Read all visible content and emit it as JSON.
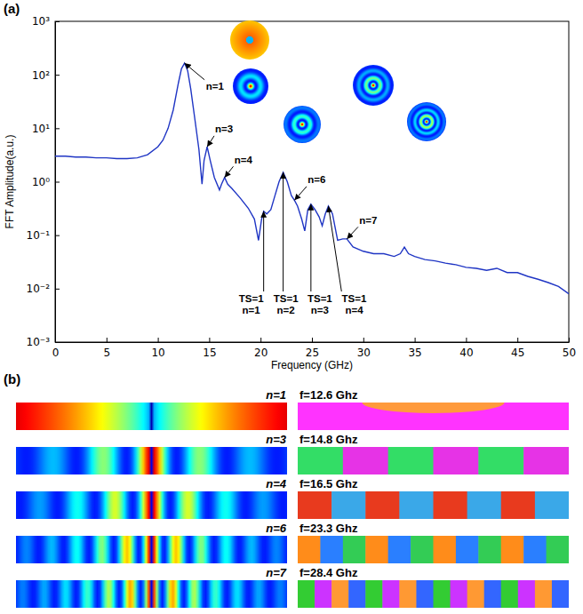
{
  "chart_data": {
    "type": "line",
    "panel_label": "(a)",
    "xlabel": "Frequency (GHz)",
    "ylabel": "FFT Amplitude(a.u.)",
    "x": [
      0,
      1,
      2,
      3,
      4,
      5,
      6,
      7,
      8,
      9,
      10,
      10.5,
      11,
      11.5,
      12,
      12.3,
      12.6,
      12.9,
      13.2,
      13.6,
      14,
      14.3,
      14.5,
      14.8,
      15.1,
      15.5,
      16,
      16.2,
      16.5,
      16.8,
      17.2,
      18,
      18.8,
      19.4,
      19.8,
      20.1,
      20.3,
      20.6,
      21,
      21.4,
      21.8,
      22.2,
      22.6,
      23,
      23.3,
      23.6,
      24,
      24.3,
      24.6,
      24.9,
      25.3,
      25.7,
      26,
      26.3,
      26.6,
      27,
      27.5,
      28,
      28.4,
      29,
      30,
      31,
      32,
      33,
      33.6,
      34,
      34.4,
      35,
      36,
      37,
      38,
      39,
      40,
      41,
      42,
      43,
      44,
      45,
      46,
      47,
      48,
      49,
      50
    ],
    "values": [
      3.0,
      3.0,
      2.9,
      2.9,
      2.8,
      2.8,
      2.7,
      2.7,
      2.8,
      3.2,
      4.5,
      6,
      10,
      22,
      70,
      130,
      165,
      120,
      55,
      15,
      4,
      0.9,
      2.5,
      4.5,
      2.5,
      1.2,
      0.7,
      0.9,
      1.2,
      0.9,
      0.75,
      0.5,
      0.32,
      0.2,
      0.08,
      0.2,
      0.28,
      0.25,
      0.3,
      0.55,
      1.0,
      1.5,
      1.0,
      0.55,
      0.45,
      0.35,
      0.2,
      0.12,
      0.3,
      0.38,
      0.3,
      0.22,
      0.15,
      0.25,
      0.35,
      0.25,
      0.08,
      0.085,
      0.085,
      0.06,
      0.05,
      0.045,
      0.045,
      0.04,
      0.045,
      0.06,
      0.045,
      0.04,
      0.035,
      0.033,
      0.03,
      0.028,
      0.025,
      0.024,
      0.022,
      0.024,
      0.02,
      0.02,
      0.017,
      0.015,
      0.013,
      0.011,
      0.008
    ],
    "color": "#1f35c4",
    "log": "y",
    "grid": false,
    "xlim": [
      0,
      50
    ],
    "ylim": [
      0.001,
      1000
    ],
    "xticks": [
      0,
      5,
      10,
      15,
      20,
      25,
      30,
      35,
      40,
      45,
      50
    ],
    "yticks": [
      {
        "value": 0.001,
        "label": "10⁻³"
      },
      {
        "value": 0.01,
        "label": "10⁻²"
      },
      {
        "value": 0.1,
        "label": "10⁻¹"
      },
      {
        "value": 1,
        "label": "10⁰"
      },
      {
        "value": 10,
        "label": "10¹"
      },
      {
        "value": 100,
        "label": "10²"
      },
      {
        "value": 1000,
        "label": "10³"
      }
    ],
    "annotations": [
      {
        "lines": [
          "n=1"
        ],
        "x": 12.6,
        "y": 165
      },
      {
        "lines": [
          "n=3"
        ],
        "x": 14.8,
        "y": 4.5
      },
      {
        "lines": [
          "n=4"
        ],
        "x": 16.5,
        "y": 1.2
      },
      {
        "lines": [
          "n=6"
        ],
        "x": 23.3,
        "y": 0.45
      },
      {
        "lines": [
          "n=7"
        ],
        "x": 28.4,
        "y": 0.085
      },
      {
        "lines": [
          "TS=1",
          "n=1"
        ],
        "x": 20.3,
        "y": 0.28
      },
      {
        "lines": [
          "TS=1",
          "n=2"
        ],
        "x": 22.2,
        "y": 1.5
      },
      {
        "lines": [
          "TS=1",
          "n=3"
        ],
        "x": 24.9,
        "y": 0.38
      },
      {
        "lines": [
          "TS=1",
          "n=4"
        ],
        "x": 26.6,
        "y": 0.35
      }
    ]
  },
  "panel_b": {
    "label": "(b)",
    "rows": [
      {
        "n": "n=1",
        "f": "f=12.6 Ghz"
      },
      {
        "n": "n=3",
        "f": "f=14.8 Ghz"
      },
      {
        "n": "n=4",
        "f": "f=16.5 Ghz"
      },
      {
        "n": "n=6",
        "f": "f=23.3 Ghz"
      },
      {
        "n": "n=7",
        "f": "f=28.4 Ghz"
      }
    ]
  }
}
